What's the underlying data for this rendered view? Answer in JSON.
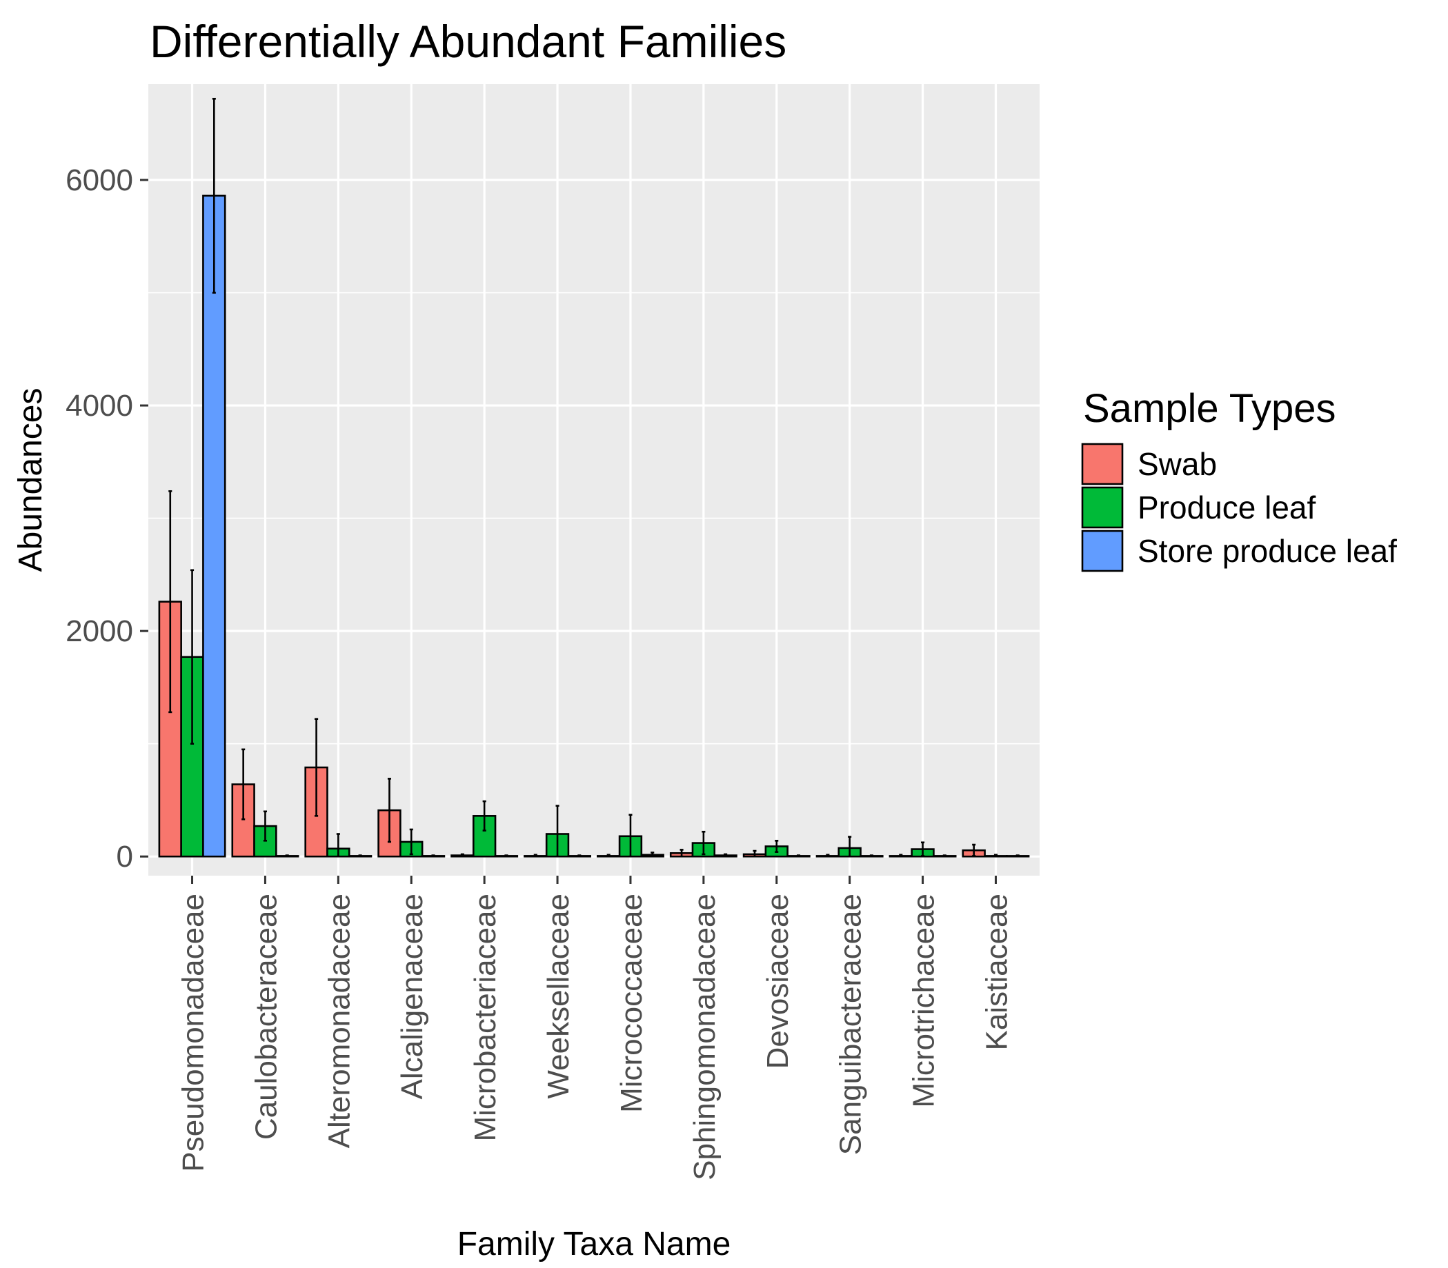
{
  "chart_data": {
    "type": "bar",
    "title": "Differentially Abundant Families",
    "xlabel": "Family Taxa Name",
    "ylabel": "Abundances",
    "ylim": [
      -170,
      6850
    ],
    "yticks": [
      0,
      2000,
      4000,
      6000
    ],
    "grid": true,
    "legend_position": "right",
    "legend_title": "Sample Types",
    "categories": [
      "Pseudomonadaceae",
      "Caulobacteraceae",
      "Alteromonadaceae",
      "Alcaligenaceae",
      "Microbacteriaceae",
      "Weeksellaceae",
      "Micrococcaceae",
      "Sphingomonadaceae",
      "Devosiaceae",
      "Sanguibacteraceae",
      "Microtrichaceae",
      "Kaistiaceae"
    ],
    "series": [
      {
        "name": "Swab",
        "color": "#F8766D",
        "values": [
          2260,
          640,
          790,
          410,
          10,
          5,
          5,
          30,
          20,
          5,
          5,
          55
        ],
        "error": [
          980,
          310,
          430,
          280,
          10,
          10,
          10,
          30,
          30,
          10,
          10,
          50
        ]
      },
      {
        "name": "Produce leaf",
        "color": "#00BA38",
        "values": [
          1770,
          270,
          70,
          130,
          360,
          200,
          180,
          120,
          90,
          75,
          65,
          5
        ],
        "error": [
          770,
          130,
          130,
          110,
          130,
          250,
          190,
          100,
          50,
          100,
          60,
          10
        ]
      },
      {
        "name": "Store produce leaf",
        "color": "#619CFF",
        "values": [
          5860,
          5,
          5,
          5,
          5,
          5,
          15,
          10,
          5,
          5,
          5,
          5
        ],
        "error": [
          860,
          5,
          5,
          5,
          5,
          5,
          20,
          10,
          5,
          5,
          5,
          5
        ]
      }
    ]
  }
}
